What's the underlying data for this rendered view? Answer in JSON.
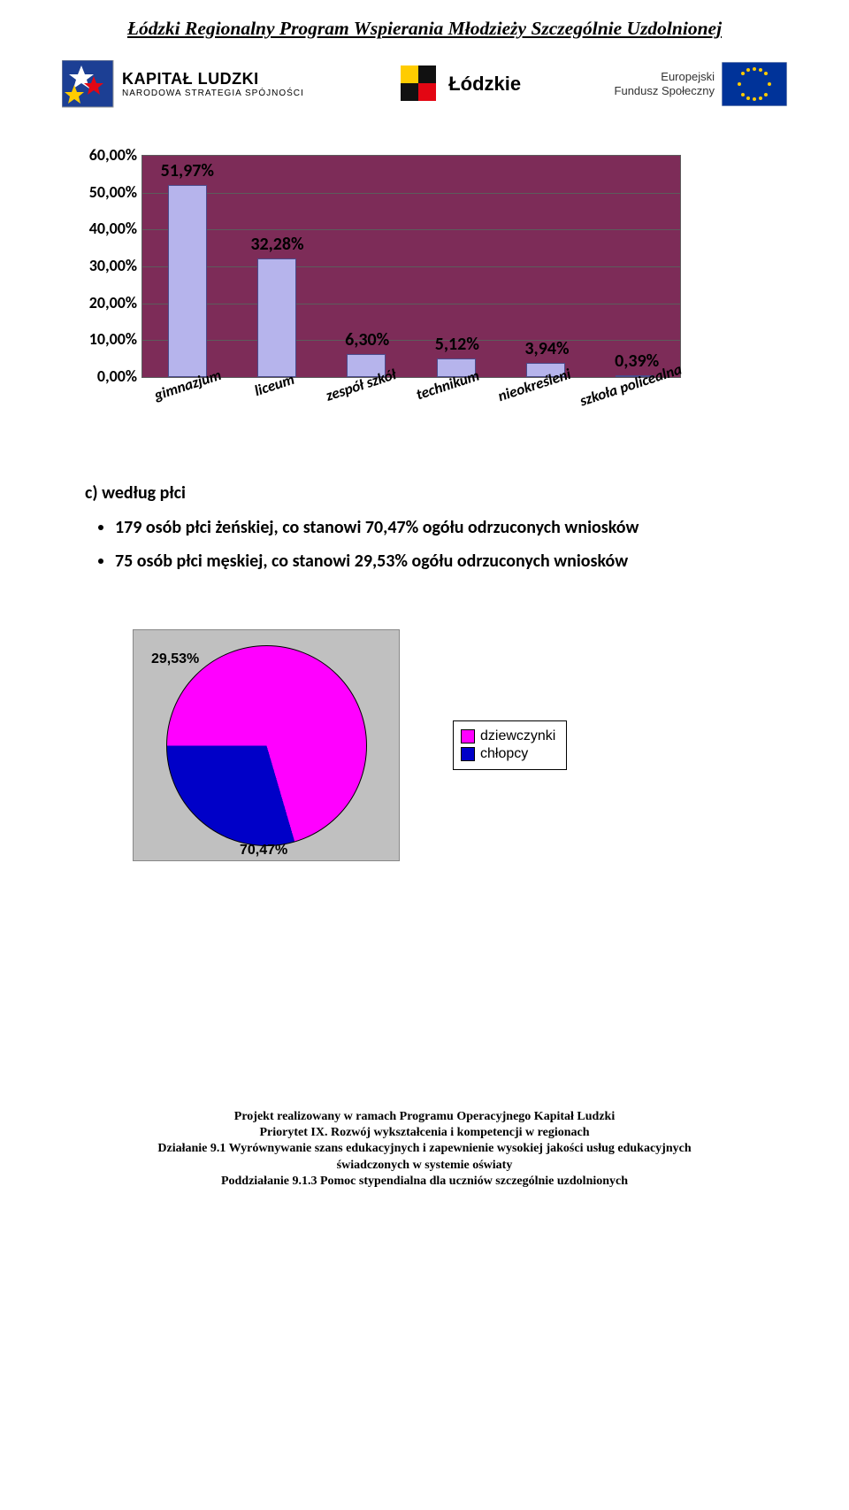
{
  "header": {
    "program_title": "Łódzki Regionalny Program Wspierania Młodzieży Szczególnie Uzdolnionej"
  },
  "logos": {
    "kapital_title": "KAPITAŁ LUDZKI",
    "kapital_sub": "NARODOWA STRATEGIA SPÓJNOŚCI",
    "lodzkie": "Łódzkie",
    "efs_line1": "Europejski",
    "efs_line2": "Fundusz Społeczny"
  },
  "bar_chart": {
    "type": "bar",
    "plot_bg": "#7d2c58",
    "grid_color": "#5c5c5c",
    "bar_fill": "#b6b4ec",
    "bar_border": "#4b4b8b",
    "y_ticks": [
      "0,00%",
      "10,00%",
      "20,00%",
      "30,00%",
      "40,00%",
      "50,00%",
      "60,00%"
    ],
    "ymax": 60,
    "categories": [
      "gimnazjum",
      "liceum",
      "zespół szkół",
      "technikum",
      "nieokreśleni",
      "szkoła policealna"
    ],
    "values": [
      51.97,
      32.28,
      6.3,
      5.12,
      3.94,
      0.39
    ],
    "value_labels": [
      "51,97%",
      "32,28%",
      "6,30%",
      "5,12%",
      "3,94%",
      "0,39%"
    ]
  },
  "section_c": {
    "heading": "c)  według płci",
    "bullet1": "179 osób płci żeńskiej, co stanowi 70,47% ogółu odrzuconych wniosków",
    "bullet2": "75 osób płci męskiej, co stanowi 29,53% ogółu odrzuconych wniosków"
  },
  "pie_chart": {
    "type": "pie",
    "bg": "#c0c0c0",
    "slices": [
      {
        "label": "dziewczynki",
        "value": 70.47,
        "display": "70,47%",
        "color": "#ff00ff"
      },
      {
        "label": "chłopcy",
        "value": 29.53,
        "display": "29,53%",
        "color": "#0000c8"
      }
    ],
    "start_angle_deg": -90
  },
  "footer": {
    "l1": "Projekt realizowany w ramach Programu Operacyjnego Kapitał Ludzki",
    "l2": "Priorytet IX. ",
    "l2b": "Rozwój wykształcenia i kompetencji w regionach",
    "l3": "Działanie 9.1 Wyrównywanie szans edukacyjnych i zapewnienie wysokiej jakości usług edukacyjnych",
    "l4": "świadczonych w systemie oświaty",
    "l5": "Poddziałanie 9.1.3 Pomoc stypendialna dla uczniów szczególnie uzdolnionych"
  }
}
